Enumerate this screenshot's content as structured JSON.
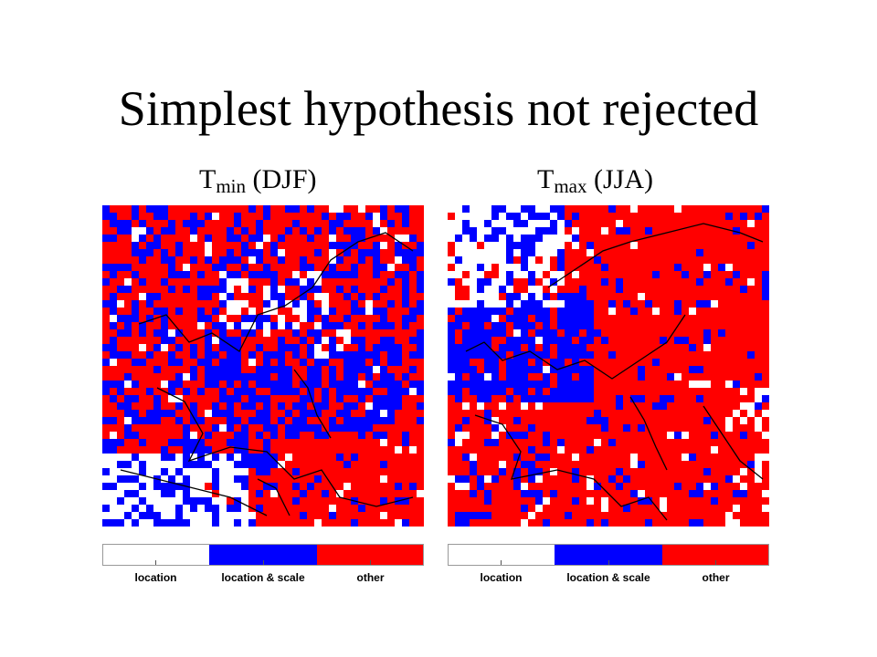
{
  "title": "Simplest hypothesis not rejected",
  "colors": {
    "location": "#ffffff",
    "location_scale": "#0000ff",
    "other": "#ff0000",
    "coastline": "#000000"
  },
  "panels": [
    {
      "var": "T",
      "sub": "min",
      "season": " (DJF)",
      "labels": [
        "location",
        "location & scale",
        "other"
      ]
    },
    {
      "var": "T",
      "sub": "max",
      "season": " (JJA)",
      "labels": [
        "location",
        "location & scale",
        "other"
      ]
    }
  ]
}
